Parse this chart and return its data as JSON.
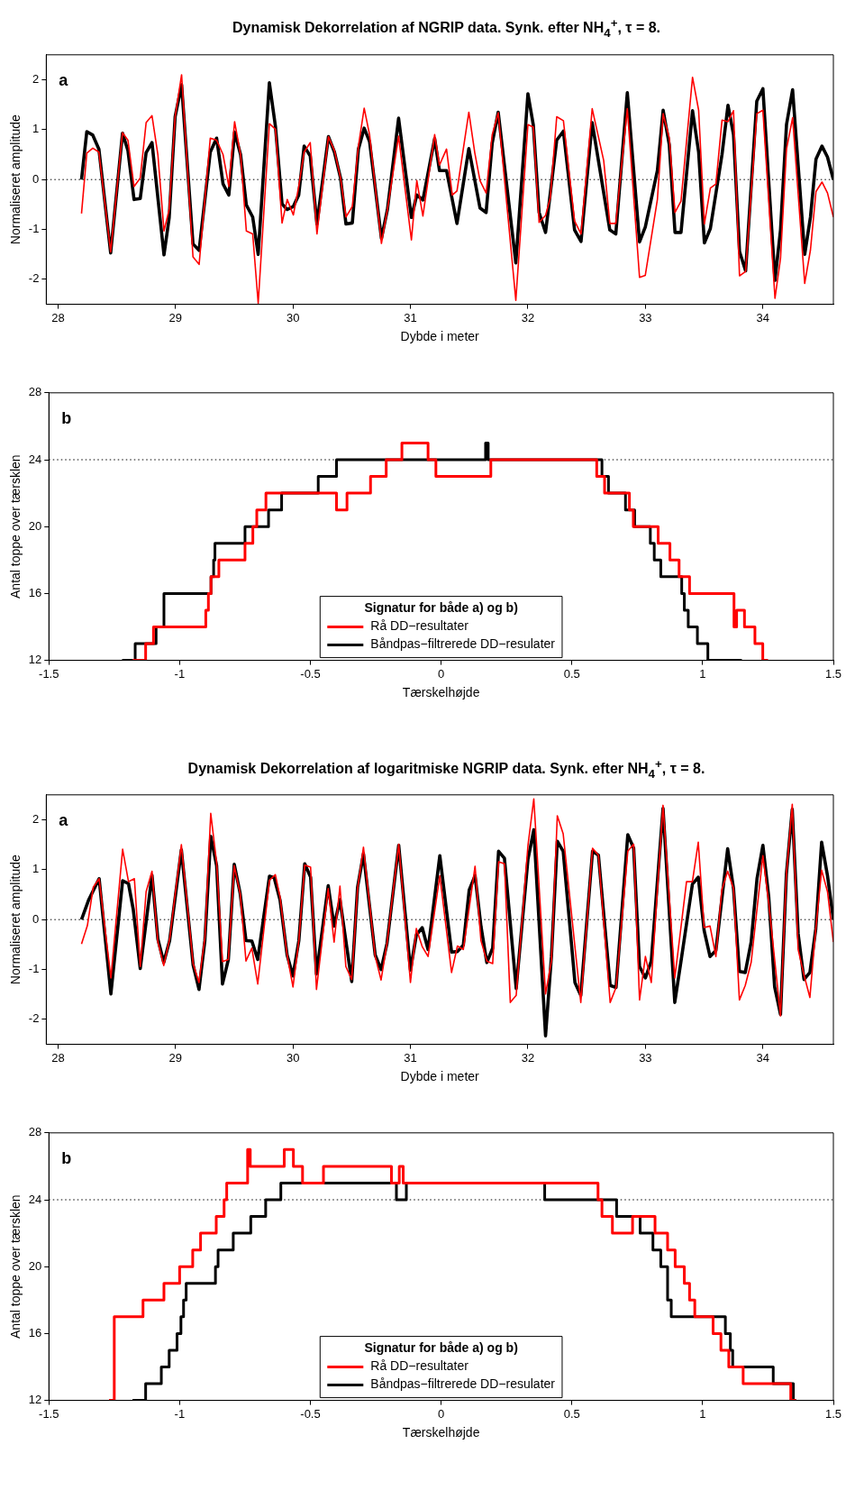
{
  "chart_data": [
    {
      "type": "line",
      "title": "Dynamisk Dekorrelation af NGRIP data. Synk. efter NH$_{4}$$^{+}$, τ = 8.",
      "xlabel": "Dybde i meter",
      "ylabel": "Normaliseret amplitude",
      "annotations": [
        "a"
      ],
      "xlim": [
        27.9,
        34.6
      ],
      "xticks": [
        28,
        29,
        30,
        31,
        32,
        33,
        34
      ],
      "ylim": [
        -2.5,
        2.5
      ],
      "yticks": [
        -2,
        -1,
        0,
        1,
        2
      ],
      "ref_lines": [
        {
          "axis": "y",
          "value": 0,
          "line_style": "dotted"
        }
      ],
      "series": [
        {
          "color": "#ff0000",
          "x": [
            28.2,
            28.245,
            28.296,
            28.348,
            28.448,
            28.549,
            28.595,
            28.647,
            28.7,
            28.75,
            28.8,
            28.85,
            28.902,
            28.946,
            28.997,
            29.052,
            29.149,
            29.201,
            29.296,
            29.35,
            29.405,
            29.454,
            29.503,
            29.554,
            29.603,
            29.657,
            29.704,
            29.799,
            29.851,
            29.907,
            29.951,
            30.003,
            30.049,
            30.095,
            30.147,
            30.204,
            30.302,
            30.353,
            30.405,
            30.451,
            30.505,
            30.557,
            30.606,
            30.652,
            30.753,
            30.804,
            30.899,
            31.008,
            31.054,
            31.106,
            31.206,
            31.247,
            31.307,
            31.356,
            31.396,
            31.497,
            31.548,
            31.592,
            31.644,
            31.696,
            31.747,
            31.897,
            32.0,
            32.046,
            32.095,
            32.15,
            32.19,
            32.245,
            32.302,
            32.397,
            32.452,
            32.547,
            32.645,
            32.697,
            32.748,
            32.846,
            32.95,
            32.999,
            33.102,
            33.151,
            33.203,
            33.252,
            33.303,
            33.401,
            33.453,
            33.502,
            33.553,
            33.6,
            33.652,
            33.703,
            33.75,
            33.801,
            33.853,
            33.948,
            34.0,
            34.103,
            34.15,
            34.201,
            34.253,
            34.356,
            34.405,
            34.452,
            34.503,
            34.55,
            34.6
          ],
          "values": [
            -0.68,
            0.53,
            0.63,
            0.55,
            -1.45,
            0.94,
            0.79,
            -0.14,
            0.03,
            1.14,
            1.28,
            0.5,
            -1.03,
            -0.6,
            1.26,
            2.1,
            -1.55,
            -1.7,
            0.83,
            0.79,
            0.5,
            -0.14,
            1.16,
            0.5,
            -1.03,
            -1.09,
            -2.48,
            1.12,
            1.01,
            -0.87,
            -0.4,
            -0.71,
            -0.14,
            0.55,
            0.74,
            -1.09,
            0.86,
            0.58,
            0.03,
            -0.75,
            -0.54,
            0.67,
            1.43,
            0.9,
            -1.28,
            -0.6,
            0.87,
            -1.21,
            -0.02,
            -0.73,
            0.9,
            0.29,
            0.61,
            -0.31,
            -0.23,
            1.35,
            0.53,
            -0.02,
            -0.27,
            0.9,
            1.34,
            -2.42,
            1.1,
            1.05,
            -0.86,
            -0.72,
            -0.37,
            1.26,
            1.18,
            -0.83,
            -1.09,
            1.42,
            0.38,
            -0.88,
            -0.88,
            1.42,
            -1.96,
            -1.92,
            -0.4,
            1.32,
            0.84,
            -0.66,
            -0.43,
            2.05,
            1.39,
            -0.89,
            -0.17,
            -0.09,
            1.19,
            1.16,
            1.38,
            -1.93,
            -1.84,
            1.32,
            1.39,
            -2.38,
            -1.58,
            0.61,
            1.24,
            -2.08,
            -1.41,
            -0.24,
            -0.05,
            -0.27,
            -0.75
          ]
        },
        {
          "color": "#000000",
          "x": [
            28.2,
            28.245,
            28.296,
            28.348,
            28.448,
            28.549,
            28.595,
            28.647,
            28.7,
            28.75,
            28.8,
            28.902,
            28.946,
            28.997,
            29.052,
            29.149,
            29.201,
            29.296,
            29.35,
            29.405,
            29.454,
            29.503,
            29.554,
            29.603,
            29.657,
            29.704,
            29.799,
            29.851,
            29.907,
            29.951,
            30.003,
            30.049,
            30.095,
            30.147,
            30.204,
            30.302,
            30.353,
            30.405,
            30.451,
            30.505,
            30.557,
            30.606,
            30.652,
            30.753,
            30.804,
            30.899,
            31.008,
            31.054,
            31.106,
            31.206,
            31.247,
            31.307,
            31.396,
            31.497,
            31.592,
            31.644,
            31.696,
            31.747,
            31.897,
            32.0,
            32.046,
            32.095,
            32.15,
            32.245,
            32.302,
            32.397,
            32.452,
            32.547,
            32.697,
            32.748,
            32.846,
            32.95,
            32.999,
            33.102,
            33.151,
            33.203,
            33.252,
            33.303,
            33.401,
            33.453,
            33.502,
            33.553,
            33.652,
            33.703,
            33.75,
            33.801,
            33.853,
            33.948,
            34.0,
            34.103,
            34.15,
            34.201,
            34.253,
            34.356,
            34.405,
            34.452,
            34.503,
            34.55,
            34.6
          ],
          "values": [
            0,
            0.96,
            0.89,
            0.61,
            -1.47,
            0.93,
            0.58,
            -0.4,
            -0.38,
            0.54,
            0.74,
            -1.51,
            -0.77,
            1.26,
            1.9,
            -1.29,
            -1.42,
            0.55,
            0.83,
            -0.09,
            -0.31,
            0.95,
            0.5,
            -0.51,
            -0.75,
            -1.5,
            1.94,
            1.06,
            -0.49,
            -0.6,
            -0.54,
            -0.31,
            0.67,
            0.47,
            -0.89,
            0.86,
            0.55,
            0.03,
            -0.89,
            -0.87,
            0.61,
            1.03,
            0.76,
            -1.18,
            -0.6,
            1.23,
            -0.76,
            -0.31,
            -0.41,
            0.82,
            0.18,
            0.18,
            -0.88,
            0.62,
            -0.57,
            -0.66,
            0.73,
            1.35,
            -1.67,
            1.72,
            1.09,
            -0.66,
            -1.06,
            0.79,
            0.97,
            -1.01,
            -1.24,
            1.14,
            -1.01,
            -1.09,
            1.74,
            -1.25,
            -0.95,
            0.18,
            1.39,
            0.7,
            -1.06,
            -1.06,
            1.38,
            0.55,
            -1.27,
            -0.98,
            0.5,
            1.49,
            0.9,
            -1.44,
            -1.83,
            1.57,
            1.82,
            -2.02,
            -1.01,
            1.1,
            1.8,
            -1.5,
            -0.75,
            0.41,
            0.67,
            0.45,
            0
          ]
        }
      ]
    },
    {
      "type": "step",
      "xlabel": "Tærskelhøjde",
      "ylabel": "Antal toppe over tærsklen",
      "annotations": [
        "b"
      ],
      "xlim": [
        -1.5,
        1.5
      ],
      "xticks": [
        -1.5,
        -1,
        -0.5,
        0,
        0.5,
        1,
        1.5
      ],
      "ylim": [
        12,
        28
      ],
      "yticks": [
        12,
        16,
        20,
        24,
        28
      ],
      "legend": "bottom",
      "legend_title": "Signatur for både a) og b)",
      "ref_lines": [
        {
          "axis": "y",
          "value": 24,
          "line_style": "dotted"
        }
      ],
      "series": [
        {
          "name": "Rå DD−resultater",
          "color": "#ff0000",
          "x": [
            -1.18,
            -1.13,
            -1.1,
            -0.9,
            -0.89,
            -0.88,
            -0.85,
            -0.75,
            -0.72,
            -0.705,
            -0.67,
            -0.4,
            -0.36,
            -0.27,
            -0.21,
            -0.15,
            -0.05,
            -0.02,
            0.19,
            0.595,
            0.625,
            0.72,
            0.735,
            0.83,
            0.875,
            0.91,
            0.95,
            1.12,
            1.13,
            1.16,
            1.2,
            1.23,
            1.25
          ],
          "values": [
            12,
            13,
            14,
            15,
            16,
            17,
            18,
            19,
            20,
            21,
            22,
            21,
            22,
            23,
            24,
            25,
            24,
            23,
            24,
            23,
            22,
            21,
            20,
            19,
            18,
            17,
            16,
            14,
            15,
            14,
            13,
            12,
            12
          ]
        },
        {
          "name": "Båndpas−filtrerede DD−resulater",
          "color": "#000000",
          "x": [
            -1.22,
            -1.17,
            -1.09,
            -1.06,
            -0.88,
            -0.87,
            -0.865,
            -0.75,
            -0.66,
            -0.61,
            -0.47,
            -0.4,
            0.17,
            0.18,
            0.615,
            0.64,
            0.705,
            0.74,
            0.8,
            0.815,
            0.84,
            0.92,
            0.93,
            0.945,
            0.98,
            1.02,
            1.15
          ],
          "values": [
            12,
            13,
            14,
            16,
            17,
            18,
            19,
            20,
            21,
            22,
            23,
            24,
            25,
            24,
            23,
            22,
            21,
            20,
            19,
            18,
            17,
            16,
            15,
            14,
            13,
            12,
            12
          ]
        }
      ]
    },
    {
      "type": "line",
      "title": "Dynamisk Dekorrelation af logaritmiske NGRIP data. Synk. efter NH$_{4}$$^{+}$, τ = 8.",
      "xlabel": "Dybde i meter",
      "ylabel": "Normaliseret amplitude",
      "annotations": [
        "a"
      ],
      "xlim": [
        27.9,
        34.6
      ],
      "xticks": [
        28,
        29,
        30,
        31,
        32,
        33,
        34
      ],
      "ylim": [
        -2.5,
        2.5
      ],
      "yticks": [
        -2,
        -1,
        0,
        1,
        2
      ],
      "ref_lines": [
        {
          "axis": "y",
          "value": 0,
          "line_style": "dotted"
        }
      ],
      "series": [
        {
          "color": "#ff0000",
          "x": [
            28.2,
            28.25,
            28.3,
            28.35,
            28.45,
            28.55,
            28.6,
            28.65,
            28.7,
            28.75,
            28.8,
            28.85,
            28.9,
            28.95,
            29.05,
            29.15,
            29.2,
            29.25,
            29.3,
            29.35,
            29.4,
            29.45,
            29.5,
            29.55,
            29.6,
            29.65,
            29.7,
            29.8,
            29.85,
            29.89,
            29.95,
            30.0,
            30.05,
            30.1,
            30.15,
            30.2,
            30.3,
            30.35,
            30.4,
            30.45,
            30.5,
            30.55,
            30.6,
            30.7,
            30.75,
            30.8,
            30.9,
            31.0,
            31.05,
            31.1,
            31.15,
            31.25,
            31.35,
            31.4,
            31.45,
            31.55,
            31.6,
            31.65,
            31.7,
            31.75,
            31.8,
            31.85,
            31.9,
            32.0,
            32.05,
            32.15,
            32.2,
            32.25,
            32.3,
            32.4,
            32.45,
            32.55,
            32.6,
            32.7,
            32.75,
            32.85,
            32.9,
            32.95,
            33.0,
            33.05,
            33.15,
            33.25,
            33.35,
            33.4,
            33.45,
            33.5,
            33.55,
            33.6,
            33.65,
            33.7,
            33.75,
            33.8,
            33.85,
            33.9,
            34.0,
            34.05,
            34.15,
            34.2,
            34.25,
            34.3,
            34.35,
            34.4,
            34.45,
            34.5,
            34.55,
            34.6
          ],
          "values": [
            -0.49,
            -0.12,
            0.65,
            0.82,
            -1.17,
            1.41,
            0.76,
            0.82,
            -0.94,
            0.56,
            0.97,
            -0.45,
            -0.92,
            -0.39,
            1.5,
            -0.88,
            -1.26,
            -0.36,
            2.13,
            1.14,
            -0.84,
            -0.8,
            1.08,
            0.53,
            -0.83,
            -0.57,
            -1.29,
            0.79,
            0.9,
            0.45,
            -0.71,
            -1.35,
            -0.42,
            1.09,
            1.05,
            -1.4,
            0.62,
            -0.45,
            0.67,
            -0.94,
            -1.2,
            0.62,
            1.45,
            -0.74,
            -1.21,
            -0.48,
            1.51,
            -1.26,
            -0.18,
            -0.54,
            -0.74,
            0.88,
            -1.06,
            -0.53,
            -0.6,
            1.07,
            -0.42,
            -0.83,
            -0.88,
            1.16,
            1.12,
            -1.66,
            -1.52,
            1.48,
            2.42,
            -1.49,
            -0.83,
            2.08,
            1.72,
            -0.54,
            -1.66,
            1.43,
            1.29,
            -1.66,
            -1.36,
            1.37,
            1.51,
            -1.61,
            -0.74,
            -1.26,
            2.29,
            -1.17,
            0.76,
            0.76,
            1.55,
            -0.16,
            -0.13,
            -0.74,
            0.59,
            0.97,
            0.62,
            -1.61,
            -1.32,
            -0.86,
            1.28,
            0.33,
            -1.93,
            0.91,
            2.31,
            -0.6,
            -1.11,
            -1.56,
            -0.19,
            0.99,
            0.56,
            -0.45
          ]
        },
        {
          "color": "#000000",
          "x": [
            28.2,
            28.26,
            28.35,
            28.45,
            28.55,
            28.6,
            28.64,
            28.7,
            28.8,
            28.85,
            28.9,
            28.95,
            29.05,
            29.15,
            29.2,
            29.25,
            29.3,
            29.35,
            29.4,
            29.45,
            29.5,
            29.55,
            29.6,
            29.65,
            29.7,
            29.8,
            29.84,
            29.89,
            29.95,
            30.0,
            30.05,
            30.1,
            30.15,
            30.2,
            30.3,
            30.35,
            30.4,
            30.45,
            30.5,
            30.55,
            30.6,
            30.7,
            30.75,
            30.8,
            30.9,
            31.0,
            31.05,
            31.1,
            31.15,
            31.25,
            31.35,
            31.4,
            31.45,
            31.5,
            31.55,
            31.6,
            31.65,
            31.7,
            31.75,
            31.8,
            31.9,
            32.0,
            32.05,
            32.15,
            32.2,
            32.25,
            32.3,
            32.4,
            32.45,
            32.55,
            32.6,
            32.7,
            32.75,
            32.85,
            32.9,
            32.95,
            33.0,
            33.05,
            33.15,
            33.25,
            33.3,
            33.4,
            33.45,
            33.5,
            33.55,
            33.6,
            33.7,
            33.75,
            33.8,
            33.85,
            33.9,
            33.95,
            34.0,
            34.05,
            34.1,
            34.15,
            34.2,
            34.25,
            34.3,
            34.35,
            34.4,
            34.45,
            34.5,
            34.55,
            34.6
          ],
          "values": [
            0,
            0.39,
            0.82,
            -1.49,
            0.78,
            0.72,
            0.21,
            -0.98,
            0.89,
            -0.39,
            -0.86,
            -0.42,
            1.4,
            -0.91,
            -1.4,
            -0.42,
            1.67,
            1.08,
            -1.29,
            -0.8,
            1.11,
            0.53,
            -0.42,
            -0.43,
            -0.8,
            0.87,
            0.84,
            0.39,
            -0.71,
            -1.13,
            -0.42,
            1.12,
            0.85,
            -1.09,
            0.68,
            -0.13,
            0.4,
            -0.42,
            -1.24,
            0.65,
            1.32,
            -0.71,
            -1.0,
            -0.48,
            1.49,
            -1.01,
            -0.31,
            -0.16,
            -0.6,
            1.28,
            -0.65,
            -0.64,
            -0.51,
            0.59,
            0.88,
            -0.13,
            -0.86,
            -0.57,
            1.37,
            1.23,
            -1.38,
            1.2,
            1.8,
            -2.33,
            -0.74,
            1.57,
            1.37,
            -1.26,
            -1.52,
            1.37,
            1.29,
            -1.32,
            -1.36,
            1.7,
            1.43,
            -0.94,
            -1.17,
            -0.83,
            2.23,
            -1.66,
            -0.88,
            0.71,
            0.85,
            -0.22,
            -0.74,
            -0.62,
            1.42,
            0.62,
            -1.04,
            -1.06,
            -0.45,
            0.82,
            1.49,
            0.45,
            -1.35,
            -1.9,
            0.91,
            2.21,
            -0.28,
            -1.2,
            -1.06,
            -0.19,
            1.55,
            0.88,
            0
          ]
        }
      ]
    },
    {
      "type": "step",
      "xlabel": "Tærskelhøjde",
      "ylabel": "Antal toppe over tærsklen",
      "annotations": [
        "b"
      ],
      "xlim": [
        -1.5,
        1.5
      ],
      "xticks": [
        -1.5,
        -1,
        -0.5,
        0,
        0.5,
        1,
        1.5
      ],
      "ylim": [
        12,
        28
      ],
      "yticks": [
        12,
        16,
        20,
        24,
        28
      ],
      "legend": "bottom",
      "legend_title": "Signatur for både a) og b)",
      "ref_lines": [
        {
          "axis": "y",
          "value": 24,
          "line_style": "dotted"
        }
      ],
      "series": [
        {
          "name": "Rå DD−resultater",
          "color": "#ff0000",
          "x": [
            -1.27,
            -1.25,
            -1.14,
            -1.06,
            -1.0,
            -0.95,
            -0.92,
            -0.86,
            -0.83,
            -0.82,
            -0.74,
            -0.73,
            -0.6,
            -0.565,
            -0.53,
            -0.45,
            -0.19,
            -0.16,
            -0.145,
            0.6,
            0.615,
            0.655,
            0.732,
            0.818,
            0.866,
            0.895,
            0.93,
            0.95,
            0.97,
            1.04,
            1.07,
            1.1,
            1.155,
            1.337,
            1.357
          ],
          "values": [
            12,
            17,
            18,
            19,
            20,
            21,
            22,
            23,
            24,
            25,
            27,
            26,
            27,
            26,
            25,
            26,
            25,
            26,
            25,
            24,
            23,
            22,
            23,
            22,
            21,
            20,
            19,
            18,
            17,
            16,
            15,
            14,
            13,
            12,
            12
          ]
        },
        {
          "name": "Båndpas−filtrerede DD−resulater",
          "color": "#000000",
          "x": [
            -1.18,
            -1.13,
            -1.07,
            -1.04,
            -1.01,
            -0.995,
            -0.985,
            -0.975,
            -0.863,
            -0.853,
            -0.795,
            -0.728,
            -0.671,
            -0.613,
            -0.171,
            -0.133,
            0.396,
            0.671,
            0.761,
            0.81,
            0.84,
            0.866,
            0.88,
            1.087,
            1.106,
            1.115,
            1.27,
            1.347,
            1.357
          ],
          "values": [
            12,
            13,
            14,
            15,
            16,
            17,
            18,
            19,
            20,
            21,
            22,
            23,
            24,
            25,
            24,
            25,
            24,
            23,
            22,
            21,
            20,
            18,
            17,
            16,
            15,
            14,
            13,
            12,
            12
          ]
        }
      ]
    }
  ]
}
